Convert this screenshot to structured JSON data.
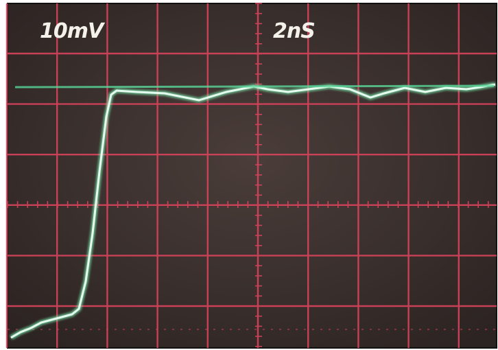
{
  "labels": {
    "volts_per_div": "10mV",
    "time_per_div": "2nS"
  }
}
